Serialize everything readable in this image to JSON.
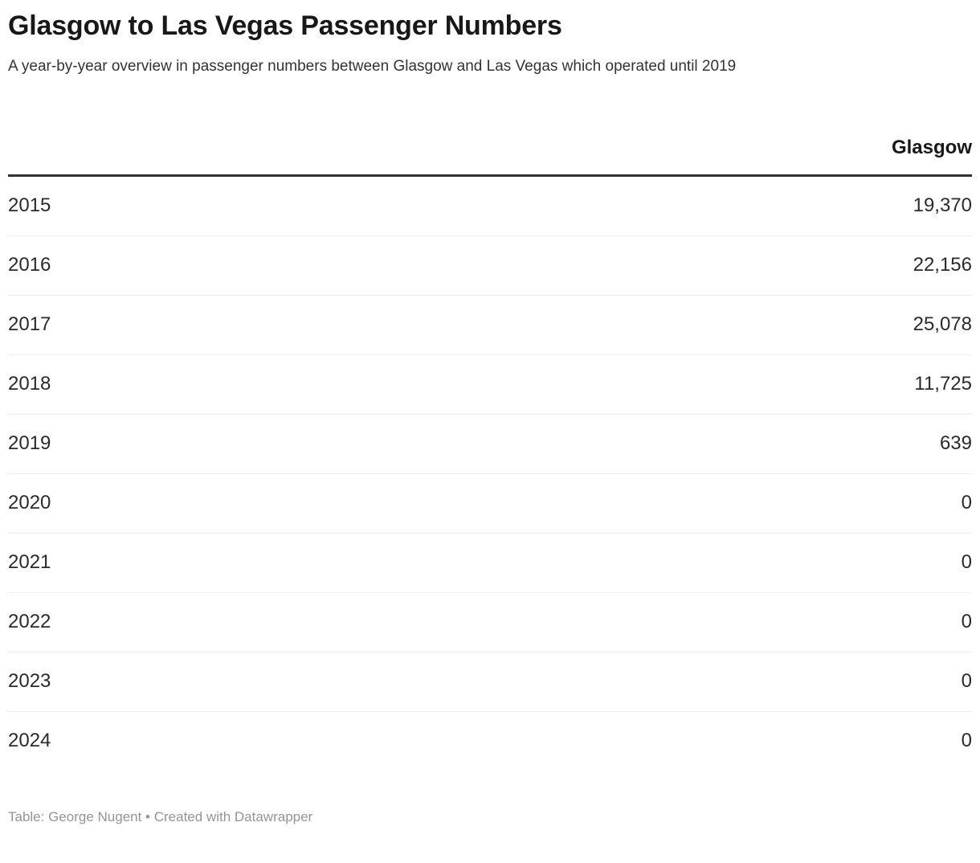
{
  "header": {
    "title": "Glasgow to Las Vegas Passenger Numbers",
    "subtitle": "A year-by-year overview in passenger numbers between Glasgow and Las Vegas which operated until 2019"
  },
  "table": {
    "year_column_label": "",
    "value_column_label": "Glasgow",
    "rows": [
      {
        "year": "2015",
        "value": "19,370"
      },
      {
        "year": "2016",
        "value": "22,156"
      },
      {
        "year": "2017",
        "value": "25,078"
      },
      {
        "year": "2018",
        "value": "11,725"
      },
      {
        "year": "2019",
        "value": "639"
      },
      {
        "year": "2020",
        "value": "0"
      },
      {
        "year": "2021",
        "value": "0"
      },
      {
        "year": "2022",
        "value": "0"
      },
      {
        "year": "2023",
        "value": "0"
      },
      {
        "year": "2024",
        "value": "0"
      }
    ]
  },
  "footer": {
    "text": "Table: George Nugent • Created with Datawrapper"
  },
  "colors": {
    "title_text": "#18181a",
    "body_text": "#333333",
    "header_rule": "#333333",
    "row_divider": "#ededed",
    "footer_text": "#949494",
    "background": "#ffffff"
  },
  "chart_data": {
    "type": "table",
    "title": "Glasgow to Las Vegas Passenger Numbers",
    "subtitle": "A year-by-year overview in passenger numbers between Glasgow and Las Vegas which operated until 2019",
    "columns": [
      "",
      "Glasgow"
    ],
    "categories": [
      "2015",
      "2016",
      "2017",
      "2018",
      "2019",
      "2020",
      "2021",
      "2022",
      "2023",
      "2024"
    ],
    "series": [
      {
        "name": "Glasgow",
        "values": [
          19370,
          22156,
          25078,
          11725,
          639,
          0,
          0,
          0,
          0,
          0
        ]
      }
    ],
    "footer": "Table: George Nugent • Created with Datawrapper"
  }
}
